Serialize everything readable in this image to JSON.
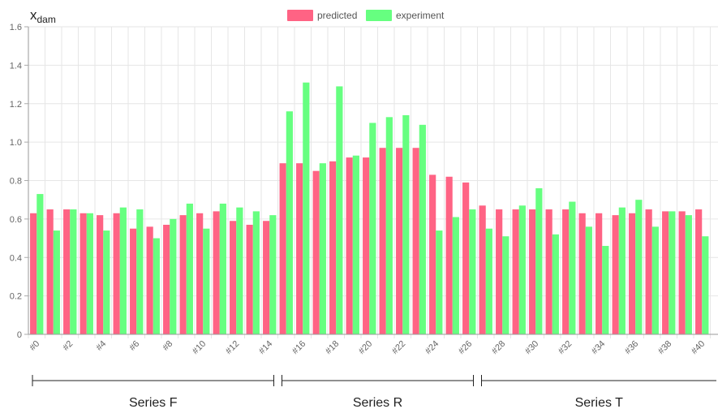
{
  "chart_data": {
    "type": "bar",
    "ylabel_main": "x",
    "ylabel_sub": "dam",
    "ylim": [
      0,
      1.6
    ],
    "yticks": [
      "0",
      "0.2",
      "0.4",
      "0.6",
      "0.8",
      "1.0",
      "1.2",
      "1.4",
      "1.6"
    ],
    "grid": true,
    "legend_position": "top-center",
    "categories": [
      "#0",
      "#1",
      "#2",
      "#3",
      "#4",
      "#5",
      "#6",
      "#7",
      "#8",
      "#9",
      "#10",
      "#11",
      "#12",
      "#13",
      "#14",
      "#15",
      "#16",
      "#17",
      "#18",
      "#19",
      "#20",
      "#21",
      "#22",
      "#23",
      "#24",
      "#25",
      "#26",
      "#27",
      "#28",
      "#29",
      "#30",
      "#31",
      "#32",
      "#33",
      "#34",
      "#35",
      "#36",
      "#37",
      "#38",
      "#39",
      "#40",
      "#41"
    ],
    "shown_tick_labels": [
      "#0",
      "#2",
      "#4",
      "#6",
      "#8",
      "#10",
      "#12",
      "#14",
      "#16",
      "#18",
      "#20",
      "#22",
      "#24",
      "#26",
      "#28",
      "#30",
      "#32",
      "#34",
      "#36",
      "#38",
      "#40"
    ],
    "series": [
      {
        "name": "predicted",
        "color": "#ff6384",
        "values": [
          0.63,
          0.65,
          0.65,
          0.63,
          0.62,
          0.63,
          0.55,
          0.56,
          0.57,
          0.62,
          0.63,
          0.64,
          0.59,
          0.57,
          0.59,
          0.89,
          0.89,
          0.85,
          0.9,
          0.92,
          0.92,
          0.97,
          0.97,
          0.97,
          0.83,
          0.82,
          0.79,
          0.67,
          0.65,
          0.65,
          0.65,
          0.65,
          0.65,
          0.63,
          0.63,
          0.62,
          0.63,
          0.65,
          0.64,
          0.64,
          0.65,
          null
        ]
      },
      {
        "name": "experiment",
        "color": "#66ff80",
        "values": [
          0.73,
          0.54,
          0.65,
          0.63,
          0.54,
          0.66,
          0.65,
          0.5,
          0.6,
          0.68,
          0.55,
          0.68,
          0.66,
          0.64,
          0.62,
          1.16,
          1.31,
          0.89,
          1.29,
          0.93,
          1.1,
          1.13,
          1.14,
          1.09,
          0.54,
          0.61,
          0.65,
          0.55,
          0.51,
          0.67,
          0.76,
          0.52,
          0.69,
          0.56,
          0.46,
          0.66,
          0.7,
          0.56,
          0.64,
          0.62,
          0.51,
          null
        ]
      }
    ],
    "groups": [
      {
        "label": "Series F",
        "from": 0,
        "to": 14
      },
      {
        "label": "Series R",
        "from": 15,
        "to": 26
      },
      {
        "label": "Series T",
        "from": 27,
        "to": 41
      }
    ]
  }
}
